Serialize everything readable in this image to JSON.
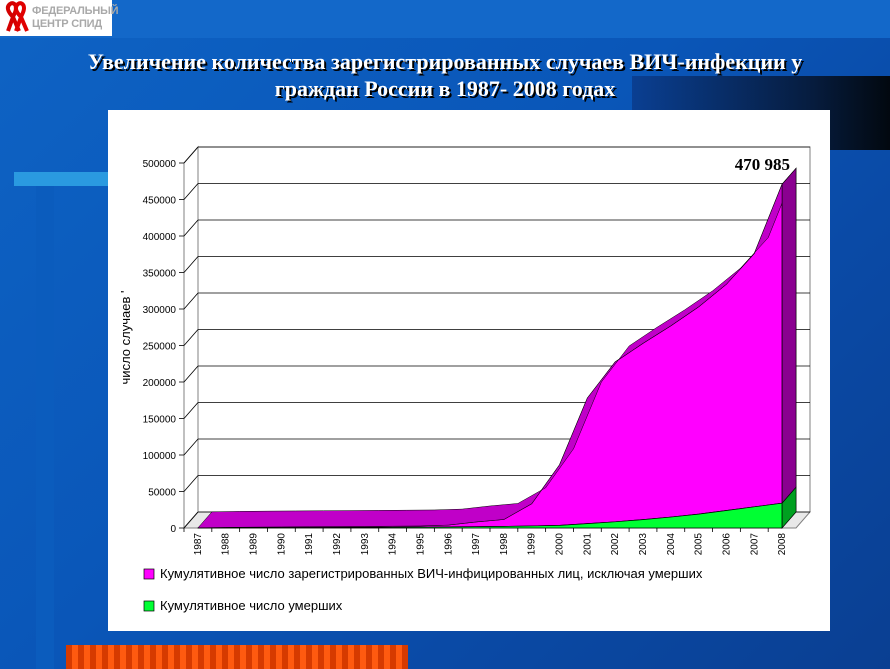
{
  "logo": {
    "line1": "ФЕДЕРАЛЬНЫЙ",
    "line2": "ЦЕНТР СПИД",
    "icon": "red-ribbon-icon"
  },
  "title": {
    "line1": "Увеличение количества зарегистрированных случаев ВИЧ-инфекции у",
    "line2": "граждан России в 1987- 2008 годах"
  },
  "colors": {
    "background": "#0a56b8",
    "series_hiv": "#ff00ff",
    "series_hiv_dark": "#8a0090",
    "series_dead": "#00ff33",
    "series_dead_dark": "#00a020",
    "accent_bar": "#ff4a00"
  },
  "chart_data": {
    "type": "area",
    "stacked": true,
    "three_d": true,
    "title": "",
    "xlabel": "",
    "ylabel": "число случаев '",
    "ylim": [
      0,
      500000
    ],
    "yticks": [
      0,
      50000,
      100000,
      150000,
      200000,
      250000,
      300000,
      350000,
      400000,
      450000,
      500000
    ],
    "grid": true,
    "legend_position": "bottom",
    "x": [
      "1987",
      "1988",
      "1989",
      "1990",
      "1991",
      "1992",
      "1993",
      "1994",
      "1995",
      "1996",
      "1997",
      "1998",
      "1999",
      "2000",
      "2001",
      "2002",
      "2003",
      "2004",
      "2005",
      "2006",
      "2007",
      "2008"
    ],
    "series": [
      {
        "name": "Кумулятивное число умерших",
        "values": [
          50,
          150,
          300,
          450,
          600,
          750,
          900,
          1100,
          1300,
          1500,
          1800,
          2200,
          2800,
          3600,
          6000,
          8500,
          11500,
          15000,
          19000,
          24000,
          29000,
          34000
        ]
      },
      {
        "name": "Кумулятивное число зарегистрированных ВИЧ-инфицированных лиц, исключая умерших",
        "values": [
          100,
          700,
          900,
          1000,
          1100,
          1200,
          1300,
          1400,
          1500,
          2500,
          6500,
          9500,
          30500,
          83000,
          172000,
          219000,
          241500,
          262000,
          284000,
          310000,
          347000,
          436985
        ]
      }
    ],
    "annotations": [
      {
        "text": "470 985",
        "target_year": "2008",
        "target_value": 470985
      }
    ]
  }
}
